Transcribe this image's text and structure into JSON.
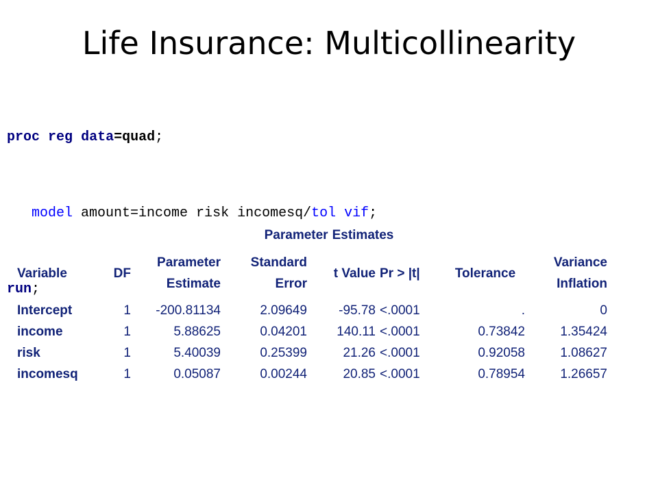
{
  "slide": {
    "title": "Life Insurance: Multicollinearity"
  },
  "code": {
    "line1": {
      "proc": "proc",
      "reg": "reg",
      "data_kw": "data",
      "eq": "=",
      "dataset": "quad",
      "semi": ";"
    },
    "line2": {
      "model": "model",
      "spec": "amount=income risk incomesq/",
      "tol": "tol",
      "vif": "vif",
      "semi": ";"
    },
    "line3": {
      "run": "run",
      "semi": ";"
    }
  },
  "table": {
    "caption_part1": "Parameter",
    "caption_part2": "Estimates",
    "headers": {
      "variable": "Variable",
      "df": "DF",
      "estimate_l1": "Parameter",
      "estimate_l2": "Estimate",
      "stderr_l1": "Standard",
      "stderr_l2": "Error",
      "tvalue": "t Value",
      "pvalue": "Pr > |t|",
      "tolerance": "Tolerance",
      "vif_l1": "Variance",
      "vif_l2": "Inflation"
    },
    "rows": [
      {
        "variable": "Intercept",
        "df": "1",
        "estimate": "-200.81134",
        "stderr": "2.09649",
        "tvalue": "-95.78",
        "pvalue": "<.0001",
        "tolerance": ".",
        "vif": "0"
      },
      {
        "variable": "income",
        "df": "1",
        "estimate": "5.88625",
        "stderr": "0.04201",
        "tvalue": "140.11",
        "pvalue": "<.0001",
        "tolerance": "0.73842",
        "vif": "1.35424"
      },
      {
        "variable": "risk",
        "df": "1",
        "estimate": "5.40039",
        "stderr": "0.25399",
        "tvalue": "21.26",
        "pvalue": "<.0001",
        "tolerance": "0.92058",
        "vif": "1.08627"
      },
      {
        "variable": "incomesq",
        "df": "1",
        "estimate": "0.05087",
        "stderr": "0.00244",
        "tvalue": "20.85",
        "pvalue": "<.0001",
        "tolerance": "0.78954",
        "vif": "1.26657"
      }
    ]
  },
  "colors": {
    "table_text": "#112277",
    "code_keyword_bold": "#000080",
    "code_keyword_blue": "#0000ff"
  }
}
